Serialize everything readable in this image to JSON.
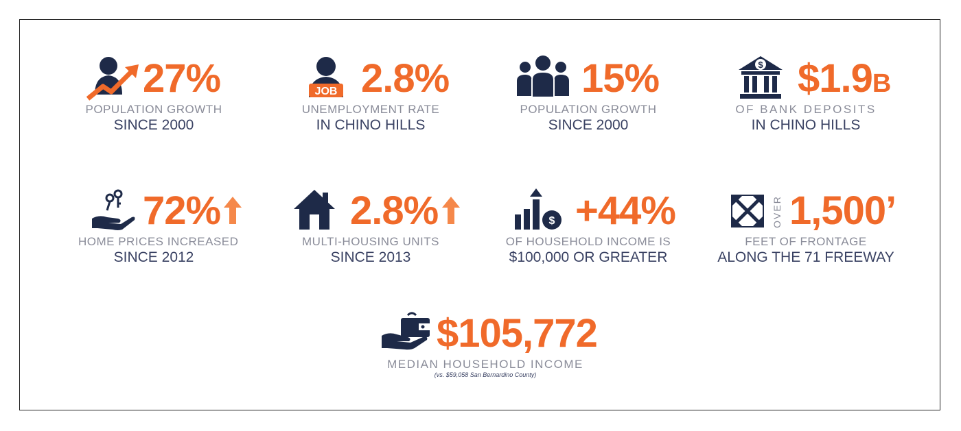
{
  "colors": {
    "accent": "#f06a2a",
    "navy": "#1e2a48",
    "label_gray": "#8a8c99",
    "subtitle": "#3a4263",
    "border": "#222222"
  },
  "stats": [
    {
      "icon": "person-growth-icon",
      "value": "27%",
      "label": "POPULATION GROWTH",
      "sub": "SINCE 2000"
    },
    {
      "icon": "job-person-icon",
      "value": "2.8%",
      "label": "UNEMPLOYMENT RATE",
      "sub": "IN CHINO HILLS",
      "icon_text": "JOB"
    },
    {
      "icon": "group-people-icon",
      "value": "15%",
      "label": "POPULATION GROWTH",
      "sub": "SINCE 2000"
    },
    {
      "icon": "bank-icon",
      "value": "$1.9",
      "unit": "B",
      "label": "OF BANK DEPOSITS",
      "sub": "IN CHINO HILLS"
    },
    {
      "icon": "hand-keys-icon",
      "value": "72%",
      "trend": "up",
      "label": "HOME PRICES INCREASED",
      "sub": "SINCE 2012"
    },
    {
      "icon": "house-icon",
      "value": "2.8%",
      "trend": "up",
      "label": "MULTI-HOUSING UNITS",
      "sub": "SINCE 2013"
    },
    {
      "icon": "income-chart-icon",
      "value": "+44%",
      "label": "OF HOUSEHOLD INCOME IS",
      "sub": "$100,000 OR GREATER"
    },
    {
      "icon": "expand-arrows-icon",
      "prefix": "OVER",
      "value": "1,500’",
      "label": "FEET OF FRONTAGE",
      "sub": "ALONG THE 71 FREEWAY"
    }
  ],
  "featured": {
    "icon": "hand-wallet-icon",
    "value": "$105,772",
    "label": "MEDIAN HOUSEHOLD INCOME",
    "note": "(vs. $59,058 San Bernardino County)"
  }
}
